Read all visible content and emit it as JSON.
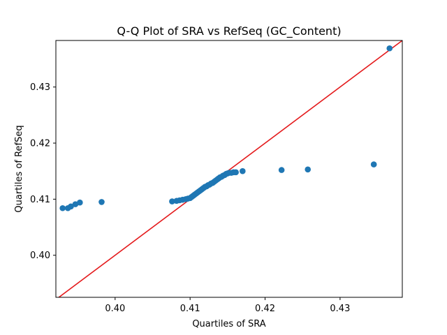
{
  "chart_data": {
    "type": "scatter",
    "title": "Q-Q Plot of SRA vs RefSeq (GC_Content)",
    "xlabel": "Quartiles of SRA",
    "ylabel": "Quartiles of RefSeq",
    "xlim": [
      0.3921,
      0.4383
    ],
    "ylim": [
      0.3925,
      0.4383
    ],
    "xticks": [
      0.4,
      0.41,
      0.42,
      0.43
    ],
    "yticks": [
      0.4,
      0.41,
      0.42,
      0.43
    ],
    "grid": false,
    "point_color": "#1f77b4",
    "reference_line": {
      "color": "#e41a1c",
      "from": [
        0.3921,
        0.3921
      ],
      "to": [
        0.4383,
        0.4383
      ]
    },
    "points": [
      [
        0.393,
        0.4084
      ],
      [
        0.3937,
        0.4084
      ],
      [
        0.3941,
        0.4087
      ],
      [
        0.3947,
        0.4091
      ],
      [
        0.3953,
        0.4094
      ],
      [
        0.3982,
        0.4095
      ],
      [
        0.4076,
        0.4096
      ],
      [
        0.4082,
        0.4097
      ],
      [
        0.4086,
        0.4098
      ],
      [
        0.409,
        0.4099
      ],
      [
        0.4094,
        0.41
      ],
      [
        0.4097,
        0.4101
      ],
      [
        0.41,
        0.4102
      ],
      [
        0.4102,
        0.4104
      ],
      [
        0.4104,
        0.4106
      ],
      [
        0.4106,
        0.4108
      ],
      [
        0.4108,
        0.411
      ],
      [
        0.411,
        0.4112
      ],
      [
        0.4112,
        0.4114
      ],
      [
        0.4114,
        0.4116
      ],
      [
        0.4116,
        0.4118
      ],
      [
        0.4118,
        0.412
      ],
      [
        0.412,
        0.4122
      ],
      [
        0.4122,
        0.4123
      ],
      [
        0.4124,
        0.4125
      ],
      [
        0.4126,
        0.4126
      ],
      [
        0.4128,
        0.4128
      ],
      [
        0.413,
        0.4129
      ],
      [
        0.4132,
        0.4131
      ],
      [
        0.4134,
        0.4133
      ],
      [
        0.4136,
        0.4135
      ],
      [
        0.4138,
        0.4137
      ],
      [
        0.414,
        0.4139
      ],
      [
        0.4142,
        0.414
      ],
      [
        0.4144,
        0.4142
      ],
      [
        0.4146,
        0.4143
      ],
      [
        0.4148,
        0.4145
      ],
      [
        0.415,
        0.4146
      ],
      [
        0.4152,
        0.4147
      ],
      [
        0.4155,
        0.4147
      ],
      [
        0.4158,
        0.4148
      ],
      [
        0.4161,
        0.4148
      ],
      [
        0.417,
        0.415
      ],
      [
        0.4222,
        0.4152
      ],
      [
        0.4257,
        0.4153
      ],
      [
        0.4345,
        0.4162
      ],
      [
        0.4366,
        0.4369
      ]
    ]
  }
}
